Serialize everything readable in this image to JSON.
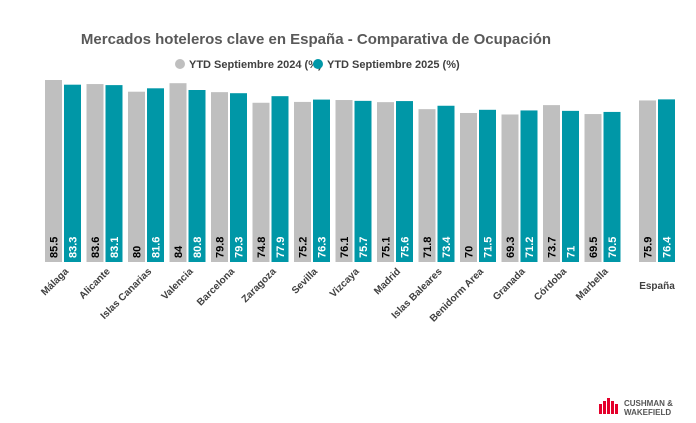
{
  "chart_data": {
    "type": "bar",
    "title": "Mercados hoteleros clave en España - Comparativa de Ocupación",
    "categories": [
      "Málaga",
      "Alicante",
      "Islas Canarias",
      "Valencia",
      "Barcelona",
      "Zaragoza",
      "Sevilla",
      "Vizcaya",
      "Madrid",
      "Islas Baleares",
      "Benidorm Area",
      "Granada",
      "Córdoba",
      "Marbella",
      "España"
    ],
    "series": [
      {
        "name": "YTD Septiembre 2024 (%)",
        "color": "#bfbfbf",
        "values": [
          85.5,
          83.6,
          80,
          84,
          79.8,
          74.8,
          75.2,
          76.1,
          75.1,
          71.8,
          70,
          69.3,
          73.7,
          69.5,
          75.9
        ]
      },
      {
        "name": "YTD Septiembre 2025 (%)",
        "color": "#0097a7",
        "values": [
          83.3,
          83.1,
          81.6,
          80.8,
          79.3,
          77.9,
          76.3,
          75.7,
          75.6,
          73.4,
          71.5,
          71.2,
          71,
          70.5,
          76.4
        ]
      }
    ],
    "logo": [
      "CUSHMAN &",
      "WAKEFIELD"
    ]
  }
}
